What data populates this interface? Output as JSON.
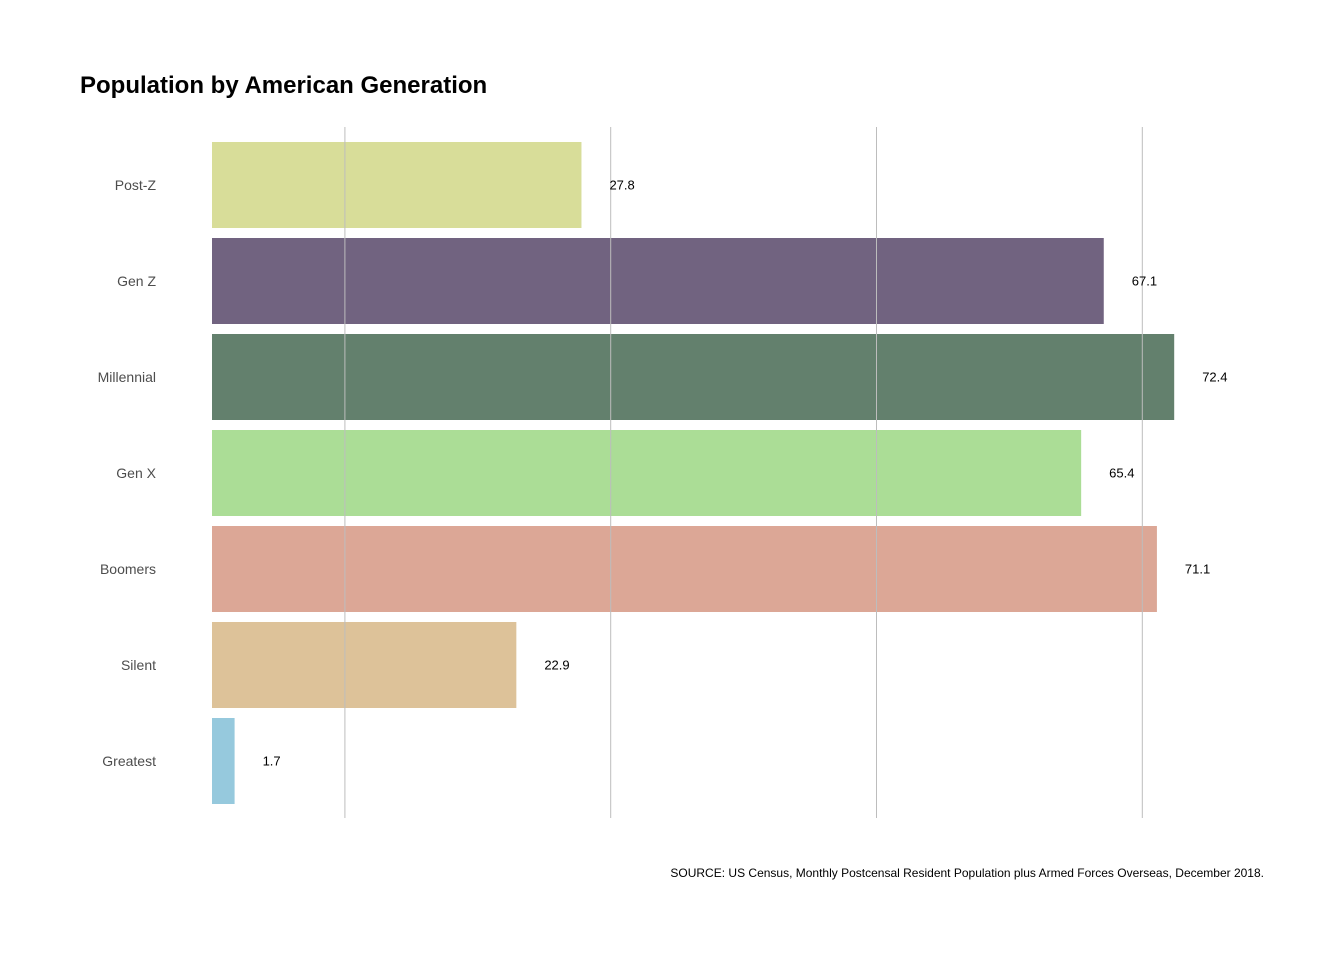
{
  "chart_data": {
    "type": "bar",
    "orientation": "horizontal",
    "title": "Population by American Generation",
    "source": "SOURCE: US Census, Monthly Postcensal Resident Population plus Armed Forces Overseas, December 2018.",
    "xlabel": "",
    "ylabel": "",
    "xlim": [
      0,
      75
    ],
    "gridlines_x": [
      10,
      30,
      50,
      70
    ],
    "grid": true,
    "legend": "none",
    "categories": [
      "Post-Z",
      "Gen Z",
      "Millennial",
      "Gen X",
      "Boomers",
      "Silent",
      "Greatest"
    ],
    "values": [
      27.8,
      67.1,
      72.4,
      65.4,
      71.1,
      22.9,
      1.7
    ],
    "value_labels": [
      "27.8",
      "67.1",
      "72.4",
      "65.4",
      "71.1",
      "22.9",
      "1.7"
    ],
    "colors": [
      "#d8dd99",
      "#716380",
      "#63806d",
      "#abdd96",
      "#dca796",
      "#ddc299",
      "#96c9dd"
    ]
  }
}
